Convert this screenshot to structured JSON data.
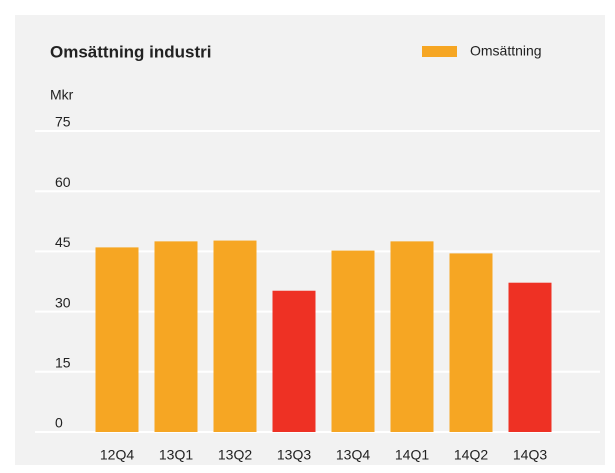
{
  "chart_data": {
    "type": "bar",
    "title": "Omsättning industri",
    "y_label": "Mkr",
    "categories": [
      "12Q4",
      "13Q1",
      "13Q2",
      "13Q3",
      "13Q4",
      "14Q1",
      "14Q2",
      "14Q3"
    ],
    "series": [
      {
        "name": "Omsättning",
        "color": "#f6a623",
        "values": [
          46,
          47.5,
          47.7,
          35.2,
          45.2,
          47.5,
          44.5,
          37.2
        ],
        "bar_colors": [
          "#f6a623",
          "#f6a623",
          "#f6a623",
          "#ee3124",
          "#f6a623",
          "#f6a623",
          "#f6a623",
          "#ee3124"
        ]
      }
    ],
    "ylim": [
      0,
      75
    ],
    "yticks": [
      0,
      15,
      30,
      45,
      60,
      75
    ],
    "grid": true,
    "legend": "top-right"
  }
}
